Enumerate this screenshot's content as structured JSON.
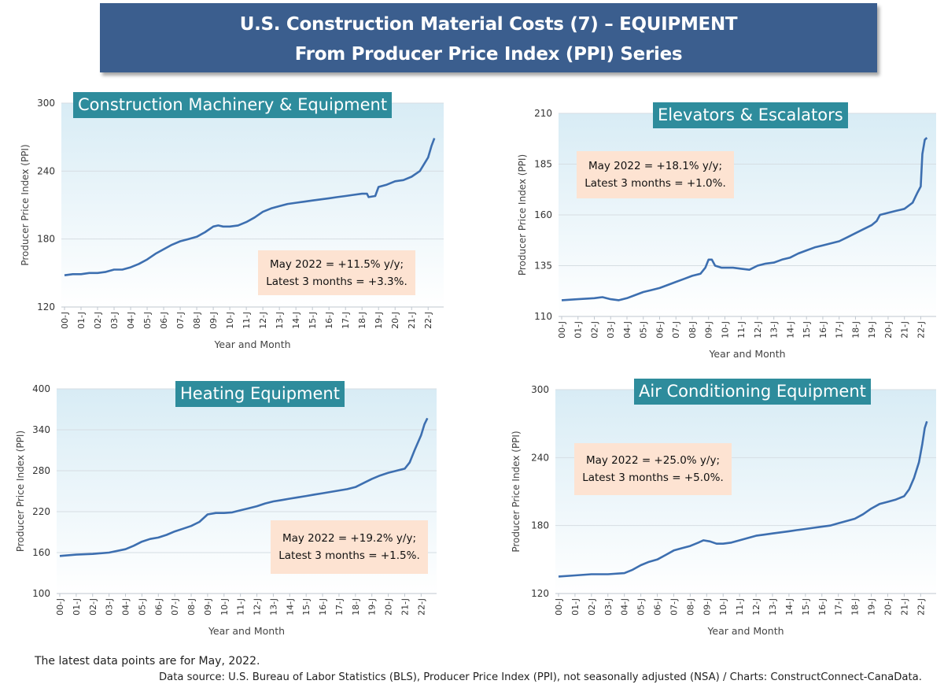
{
  "header": {
    "title_line1": "U.S. Construction Material Costs (7) – EQUIPMENT",
    "title_line2": "From Producer Price Index (PPI) Series"
  },
  "colors": {
    "banner": "#3b5e8e",
    "title_box": "#2e8c9c",
    "annotation_box": "#fde3d2",
    "line": "#3d6fb0"
  },
  "footer": {
    "note": "The latest data points are for May, 2022.",
    "source_label": "Data source:",
    "source_text": " U.S. Bureau of Labor Statistics (BLS), Producer Price Index (PPI), not seasonally adjusted (NSA) / Charts: ConstructConnect-CanaData."
  },
  "chart_data": [
    {
      "type": "line",
      "title": "Construction Machinery & Equipment",
      "ylabel": "Producer Price Index (PPI)",
      "xlabel": "Year and Month",
      "ylim": [
        120,
        300
      ],
      "yticks": [
        120,
        180,
        240,
        300
      ],
      "xticks": [
        "00-J",
        "01-J",
        "02-J",
        "03-J",
        "04-J",
        "05-J",
        "06-J",
        "07-J",
        "08-J",
        "09-J",
        "10-J",
        "11-J",
        "12-J",
        "13-J",
        "14-J",
        "15-J",
        "16-J",
        "17-J",
        "18-J",
        "19-J",
        "20-J",
        "21-J",
        "22-J"
      ],
      "annotation": [
        "May 2022 = +11.5% y/y;",
        "Latest 3 months = +3.3%."
      ],
      "series": [
        {
          "points": [
            [
              2000.0,
              148
            ],
            [
              2000.5,
              149
            ],
            [
              2001.0,
              149
            ],
            [
              2001.5,
              150
            ],
            [
              2002.0,
              150
            ],
            [
              2002.5,
              151
            ],
            [
              2003.0,
              153
            ],
            [
              2003.5,
              153
            ],
            [
              2004.0,
              155
            ],
            [
              2004.5,
              158
            ],
            [
              2005.0,
              162
            ],
            [
              2005.5,
              167
            ],
            [
              2006.0,
              171
            ],
            [
              2006.5,
              175
            ],
            [
              2007.0,
              178
            ],
            [
              2007.5,
              180
            ],
            [
              2008.0,
              182
            ],
            [
              2008.5,
              186
            ],
            [
              2009.0,
              191
            ],
            [
              2009.3,
              192
            ],
            [
              2009.6,
              191
            ],
            [
              2010.0,
              191
            ],
            [
              2010.5,
              192
            ],
            [
              2011.0,
              195
            ],
            [
              2011.5,
              199
            ],
            [
              2012.0,
              204
            ],
            [
              2012.5,
              207
            ],
            [
              2013.0,
              209
            ],
            [
              2013.5,
              211
            ],
            [
              2014.0,
              212
            ],
            [
              2014.5,
              213
            ],
            [
              2015.0,
              214
            ],
            [
              2015.5,
              215
            ],
            [
              2016.0,
              216
            ],
            [
              2016.5,
              217
            ],
            [
              2017.0,
              218
            ],
            [
              2017.5,
              219
            ],
            [
              2018.0,
              220
            ],
            [
              2018.3,
              220
            ],
            [
              2018.4,
              217
            ],
            [
              2018.8,
              218
            ],
            [
              2019.0,
              226
            ],
            [
              2019.5,
              228
            ],
            [
              2020.0,
              231
            ],
            [
              2020.5,
              232
            ],
            [
              2021.0,
              235
            ],
            [
              2021.5,
              240
            ],
            [
              2022.0,
              252
            ],
            [
              2022.2,
              262
            ],
            [
              2022.38,
              269
            ]
          ]
        }
      ]
    },
    {
      "type": "line",
      "title": "Elevators & Escalators",
      "ylabel": "Producer Price Index (PPI)",
      "xlabel": "Year and Month",
      "ylim": [
        110,
        210
      ],
      "yticks": [
        110,
        135,
        160,
        185,
        210
      ],
      "xticks": [
        "00-J",
        "01-J",
        "02-J",
        "03-J",
        "04-J",
        "05-J",
        "06-J",
        "07-J",
        "08-J",
        "09-J",
        "10-J",
        "11-J",
        "12-J",
        "13-J",
        "14-J",
        "15-J",
        "16-J",
        "17-J",
        "18-J",
        "19-J",
        "20-J",
        "21-J",
        "22-J"
      ],
      "annotation": [
        "May 2022 = +18.1% y/y;",
        "Latest 3 months = +1.0%."
      ],
      "series": [
        {
          "points": [
            [
              2000.0,
              118
            ],
            [
              2001.0,
              118.5
            ],
            [
              2002.0,
              119
            ],
            [
              2002.5,
              119.5
            ],
            [
              2003.0,
              118.5
            ],
            [
              2003.5,
              118
            ],
            [
              2004.0,
              119
            ],
            [
              2004.5,
              120.5
            ],
            [
              2005.0,
              122
            ],
            [
              2005.5,
              123
            ],
            [
              2006.0,
              124
            ],
            [
              2006.5,
              125.5
            ],
            [
              2007.0,
              127
            ],
            [
              2007.5,
              128.5
            ],
            [
              2008.0,
              130
            ],
            [
              2008.5,
              131
            ],
            [
              2008.8,
              134
            ],
            [
              2009.0,
              138
            ],
            [
              2009.2,
              138
            ],
            [
              2009.4,
              135
            ],
            [
              2009.8,
              134
            ],
            [
              2010.0,
              134
            ],
            [
              2010.5,
              134
            ],
            [
              2011.0,
              133.5
            ],
            [
              2011.5,
              133
            ],
            [
              2012.0,
              135
            ],
            [
              2012.5,
              136
            ],
            [
              2013.0,
              136.5
            ],
            [
              2013.5,
              138
            ],
            [
              2014.0,
              139
            ],
            [
              2014.5,
              141
            ],
            [
              2015.0,
              142.5
            ],
            [
              2015.5,
              144
            ],
            [
              2016.0,
              145
            ],
            [
              2016.5,
              146
            ],
            [
              2017.0,
              147
            ],
            [
              2017.5,
              149
            ],
            [
              2018.0,
              151
            ],
            [
              2018.5,
              153
            ],
            [
              2019.0,
              155
            ],
            [
              2019.3,
              157
            ],
            [
              2019.5,
              160
            ],
            [
              2020.0,
              161
            ],
            [
              2020.5,
              162
            ],
            [
              2021.0,
              163
            ],
            [
              2021.5,
              166
            ],
            [
              2021.8,
              171
            ],
            [
              2022.0,
              174
            ],
            [
              2022.1,
              190
            ],
            [
              2022.25,
              197
            ],
            [
              2022.38,
              198
            ]
          ]
        }
      ]
    },
    {
      "type": "line",
      "title": "Heating Equipment",
      "ylabel": "Producer Price Index (PPI)",
      "xlabel": "Year and Month",
      "ylim": [
        100,
        400
      ],
      "yticks": [
        100,
        160,
        220,
        280,
        340,
        400
      ],
      "xticks": [
        "00-J",
        "01-J",
        "02-J",
        "03-J",
        "04-J",
        "05-J",
        "06-J",
        "07-J",
        "08-J",
        "09-J",
        "10-J",
        "11-J",
        "12-J",
        "13-J",
        "14-J",
        "15-J",
        "16-J",
        "17-J",
        "18-J",
        "19-J",
        "20-J",
        "21-J",
        "22-J"
      ],
      "annotation": [
        "May 2022 = +19.2% y/y;",
        "Latest 3 months = +1.5%."
      ],
      "series": [
        {
          "points": [
            [
              2000.0,
              155
            ],
            [
              2001.0,
              157
            ],
            [
              2002.0,
              158
            ],
            [
              2003.0,
              160
            ],
            [
              2004.0,
              165
            ],
            [
              2004.5,
              170
            ],
            [
              2005.0,
              176
            ],
            [
              2005.5,
              180
            ],
            [
              2006.0,
              182
            ],
            [
              2006.5,
              186
            ],
            [
              2007.0,
              191
            ],
            [
              2007.5,
              195
            ],
            [
              2008.0,
              199
            ],
            [
              2008.5,
              205
            ],
            [
              2009.0,
              216
            ],
            [
              2009.5,
              218
            ],
            [
              2010.0,
              218
            ],
            [
              2010.5,
              219
            ],
            [
              2011.0,
              222
            ],
            [
              2011.5,
              225
            ],
            [
              2012.0,
              228
            ],
            [
              2012.5,
              232
            ],
            [
              2013.0,
              235
            ],
            [
              2013.5,
              237
            ],
            [
              2014.0,
              239
            ],
            [
              2014.5,
              241
            ],
            [
              2015.0,
              243
            ],
            [
              2015.5,
              245
            ],
            [
              2016.0,
              247
            ],
            [
              2016.5,
              249
            ],
            [
              2017.0,
              251
            ],
            [
              2017.5,
              253
            ],
            [
              2018.0,
              256
            ],
            [
              2018.5,
              262
            ],
            [
              2019.0,
              268
            ],
            [
              2019.5,
              273
            ],
            [
              2020.0,
              277
            ],
            [
              2020.5,
              280
            ],
            [
              2021.0,
              283
            ],
            [
              2021.3,
              292
            ],
            [
              2021.6,
              310
            ],
            [
              2022.0,
              332
            ],
            [
              2022.2,
              348
            ],
            [
              2022.38,
              357
            ]
          ]
        }
      ]
    },
    {
      "type": "line",
      "title": "Air Conditioning Equipment",
      "ylabel": "Producer Price Index (PPI)",
      "xlabel": "Year and Month",
      "ylim": [
        120,
        300
      ],
      "yticks": [
        120,
        180,
        240,
        300
      ],
      "xticks": [
        "00-J",
        "01-J",
        "02-J",
        "03-J",
        "04-J",
        "05-J",
        "06-J",
        "07-J",
        "08-J",
        "09-J",
        "10-J",
        "11-J",
        "12-J",
        "13-J",
        "14-J",
        "15-J",
        "16-J",
        "17-J",
        "18-J",
        "19-J",
        "20-J",
        "21-J",
        "22-J"
      ],
      "annotation": [
        "May 2022 = +25.0% y/y;",
        "Latest 3 months = +5.0%."
      ],
      "series": [
        {
          "points": [
            [
              2000.0,
              135
            ],
            [
              2001.0,
              136
            ],
            [
              2002.0,
              137
            ],
            [
              2003.0,
              137
            ],
            [
              2004.0,
              138
            ],
            [
              2004.5,
              141
            ],
            [
              2005.0,
              145
            ],
            [
              2005.5,
              148
            ],
            [
              2006.0,
              150
            ],
            [
              2006.5,
              154
            ],
            [
              2007.0,
              158
            ],
            [
              2007.5,
              160
            ],
            [
              2008.0,
              162
            ],
            [
              2008.5,
              165
            ],
            [
              2008.8,
              167
            ],
            [
              2009.2,
              166
            ],
            [
              2009.6,
              164
            ],
            [
              2010.0,
              164
            ],
            [
              2010.5,
              165
            ],
            [
              2011.0,
              167
            ],
            [
              2011.5,
              169
            ],
            [
              2012.0,
              171
            ],
            [
              2012.5,
              172
            ],
            [
              2013.0,
              173
            ],
            [
              2013.5,
              174
            ],
            [
              2014.0,
              175
            ],
            [
              2014.5,
              176
            ],
            [
              2015.0,
              177
            ],
            [
              2015.5,
              178
            ],
            [
              2016.0,
              179
            ],
            [
              2016.5,
              180
            ],
            [
              2017.0,
              182
            ],
            [
              2017.5,
              184
            ],
            [
              2018.0,
              186
            ],
            [
              2018.5,
              190
            ],
            [
              2019.0,
              195
            ],
            [
              2019.5,
              199
            ],
            [
              2020.0,
              201
            ],
            [
              2020.5,
              203
            ],
            [
              2021.0,
              206
            ],
            [
              2021.3,
              212
            ],
            [
              2021.6,
              222
            ],
            [
              2021.9,
              236
            ],
            [
              2022.1,
              252
            ],
            [
              2022.25,
              266
            ],
            [
              2022.38,
              272
            ]
          ]
        }
      ]
    }
  ]
}
